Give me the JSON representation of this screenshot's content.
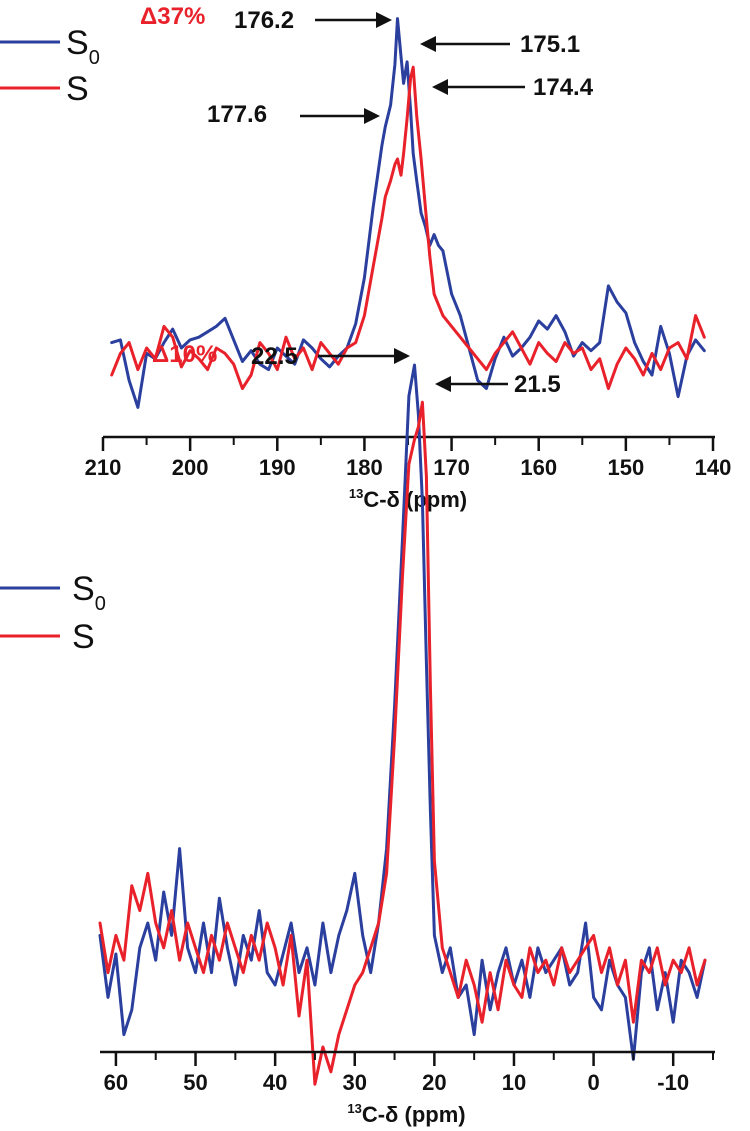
{
  "colors": {
    "s0": "#2a3f9e",
    "s": "#e8212a",
    "axis": "#111111",
    "delta": "#e8212a"
  },
  "chart_data": [
    {
      "type": "line",
      "xlabel_sup": "13",
      "xlabel_main": "C-δ (ppm)",
      "xlim": [
        210,
        140
      ],
      "xticks": [
        210,
        200,
        190,
        180,
        170,
        160,
        150,
        140
      ],
      "xtick_labels": [
        "210",
        "200",
        "190",
        "180",
        "170",
        "160",
        "150",
        "140"
      ],
      "legend": [
        {
          "label": "S",
          "sub": "0",
          "color_key": "s0"
        },
        {
          "label": "S",
          "sub": "",
          "color_key": "s"
        }
      ],
      "delta_label": "Δ37%",
      "annotations": [
        {
          "text": "176.2",
          "x": 176.2
        },
        {
          "text": "175.1",
          "x": 175.1
        },
        {
          "text": "177.6",
          "x": 177.6
        },
        {
          "text": "174.4",
          "x": 174.4
        }
      ],
      "series": [
        {
          "name": "S0",
          "color_key": "s0",
          "x": [
            209,
            208,
            207,
            206,
            205,
            204,
            203,
            202,
            201,
            200,
            199,
            198,
            197,
            196,
            195,
            194,
            193,
            192,
            191,
            190,
            189,
            188,
            187,
            186,
            185,
            184,
            183,
            182,
            181,
            180,
            179,
            178,
            177.6,
            177,
            176.5,
            176.2,
            175.8,
            175.5,
            175.1,
            174.7,
            174.4,
            174,
            173.5,
            173,
            172.5,
            172,
            171.5,
            171,
            170,
            169,
            168,
            167,
            166,
            165,
            164,
            163,
            162,
            161,
            160,
            159,
            158,
            157,
            156,
            155,
            154,
            153,
            152,
            151,
            150,
            149,
            148,
            147,
            146,
            145,
            144,
            143,
            142,
            141
          ],
          "y": [
            0.12,
            0.13,
            -0.02,
            -0.12,
            0.08,
            0.06,
            0.12,
            0.17,
            0.1,
            0.13,
            0.14,
            0.16,
            0.18,
            0.21,
            0.13,
            0.05,
            0.09,
            0.04,
            0.02,
            0.1,
            0.07,
            0.04,
            0.13,
            0.1,
            0.06,
            0.03,
            0.07,
            0.1,
            0.19,
            0.36,
            0.62,
            0.85,
            0.92,
            1.0,
            1.15,
            1.32,
            1.18,
            1.08,
            1.16,
            0.98,
            0.82,
            0.72,
            0.6,
            0.55,
            0.48,
            0.52,
            0.48,
            0.46,
            0.3,
            0.22,
            0.1,
            -0.02,
            -0.05,
            0.06,
            0.14,
            0.07,
            0.1,
            0.14,
            0.2,
            0.17,
            0.22,
            0.16,
            0.07,
            0.12,
            0.09,
            0.12,
            0.33,
            0.27,
            0.23,
            0.12,
            0.05,
            0.0,
            0.18,
            0.08,
            -0.08,
            0.07,
            0.13,
            0.09
          ]
        },
        {
          "name": "S",
          "color_key": "s",
          "x": [
            209,
            208,
            207,
            206,
            205,
            204,
            203,
            202,
            201,
            200,
            199,
            198,
            197,
            196,
            195,
            194,
            193,
            192,
            191,
            190,
            189,
            188,
            187,
            186,
            185,
            184,
            183,
            182,
            181,
            180,
            179,
            178,
            177.6,
            177,
            176.5,
            176.2,
            175.8,
            175.5,
            175.1,
            174.7,
            174.4,
            174,
            173.5,
            173,
            172.5,
            172,
            171.5,
            171,
            170,
            169,
            168,
            167,
            166,
            165,
            164,
            163,
            162,
            161,
            160,
            159,
            158,
            157,
            156,
            155,
            154,
            153,
            152,
            151,
            150,
            149,
            148,
            147,
            146,
            145,
            144,
            143,
            142,
            141
          ],
          "y": [
            0.0,
            0.08,
            0.12,
            0.02,
            0.1,
            0.06,
            0.18,
            0.14,
            0.03,
            0.09,
            0.06,
            0.02,
            0.1,
            0.08,
            0.04,
            -0.05,
            0.0,
            0.12,
            0.08,
            0.02,
            0.14,
            0.06,
            0.1,
            0.02,
            0.12,
            0.08,
            0.04,
            0.1,
            0.12,
            0.22,
            0.4,
            0.58,
            0.66,
            0.72,
            0.78,
            0.8,
            0.74,
            0.82,
            0.95,
            1.1,
            1.14,
            0.96,
            0.8,
            0.62,
            0.44,
            0.3,
            0.26,
            0.22,
            0.18,
            0.14,
            0.1,
            0.06,
            0.02,
            0.08,
            0.12,
            0.16,
            0.1,
            0.04,
            0.12,
            0.08,
            0.05,
            0.12,
            0.08,
            0.1,
            0.02,
            0.06,
            -0.05,
            0.04,
            0.1,
            0.06,
            0.0,
            0.08,
            0.02,
            0.1,
            0.12,
            0.06,
            0.22,
            0.14
          ]
        }
      ]
    },
    {
      "type": "line",
      "xlabel_sup": "13",
      "xlabel_main": "C-δ (ppm)",
      "xlim": [
        62,
        -15
      ],
      "xticks": [
        60,
        50,
        40,
        30,
        20,
        10,
        0,
        -10
      ],
      "xtick_labels": [
        "60",
        "50",
        "40",
        "30",
        "20",
        "10",
        "0",
        "-10"
      ],
      "legend": [
        {
          "label": "S",
          "sub": "0",
          "color_key": "s0"
        },
        {
          "label": "S",
          "sub": "",
          "color_key": "s"
        }
      ],
      "delta_label": "Δ10%",
      "annotations": [
        {
          "text": "22.5",
          "x": 22.5
        },
        {
          "text": "21.5",
          "x": 21.5
        }
      ],
      "series": [
        {
          "name": "S0",
          "color_key": "s0",
          "x": [
            62,
            61,
            60,
            59,
            58,
            57,
            56,
            55,
            54,
            53,
            52,
            51,
            50,
            49,
            48,
            47,
            46,
            45,
            44,
            43,
            42,
            41,
            40,
            39,
            38,
            37,
            36,
            35,
            34,
            33,
            32,
            31,
            30,
            29,
            28,
            27,
            26,
            25,
            24,
            23.2,
            22.5,
            22,
            21.5,
            21,
            20.5,
            20,
            19,
            18,
            17,
            16,
            15,
            14,
            13,
            12,
            11,
            10,
            9,
            8,
            7,
            6,
            5,
            4,
            3,
            2,
            1,
            0,
            -1,
            -2,
            -3,
            -4,
            -5,
            -6,
            -7,
            -8,
            -9,
            -10,
            -11,
            -12,
            -13,
            -14
          ],
          "y": [
            0.08,
            -0.02,
            0.05,
            -0.08,
            -0.04,
            0.06,
            0.1,
            0.04,
            0.15,
            0.08,
            0.22,
            0.06,
            0.02,
            0.1,
            0.02,
            0.14,
            0.06,
            0.0,
            0.08,
            0.04,
            0.12,
            0.02,
            0.0,
            0.05,
            0.1,
            0.02,
            0.06,
            0.0,
            0.1,
            0.02,
            0.08,
            0.12,
            0.18,
            0.08,
            0.02,
            0.1,
            0.22,
            0.45,
            0.72,
            0.95,
            1.0,
            0.92,
            0.78,
            0.52,
            0.28,
            0.08,
            0.02,
            0.06,
            -0.02,
            0.0,
            -0.08,
            0.04,
            -0.04,
            0.02,
            0.06,
            0.0,
            0.04,
            -0.02,
            0.06,
            0.02,
            0.04,
            0.06,
            0.0,
            0.02,
            0.1,
            -0.02,
            -0.04,
            0.04,
            0.0,
            -0.02,
            -0.12,
            0.02,
            0.06,
            -0.04,
            0.02,
            -0.06,
            0.04,
            0.02,
            -0.02,
            0.04
          ]
        },
        {
          "name": "S",
          "color_key": "s",
          "x": [
            62,
            61,
            60,
            59,
            58,
            57,
            56,
            55,
            54,
            53,
            52,
            51,
            50,
            49,
            48,
            47,
            46,
            45,
            44,
            43,
            42,
            41,
            40,
            39,
            38,
            37,
            36,
            35,
            34,
            33,
            32,
            31,
            30,
            29,
            28,
            27,
            26,
            25,
            24,
            23.2,
            22.5,
            22,
            21.5,
            21,
            20.5,
            20,
            19,
            18,
            17,
            16,
            15,
            14,
            13,
            12,
            11,
            10,
            9,
            8,
            7,
            6,
            5,
            4,
            3,
            2,
            1,
            0,
            -1,
            -2,
            -3,
            -4,
            -5,
            -6,
            -7,
            -8,
            -9,
            -10,
            -11,
            -12,
            -13,
            -14
          ],
          "y": [
            0.1,
            0.02,
            0.08,
            0.04,
            0.16,
            0.12,
            0.18,
            0.1,
            0.06,
            0.12,
            0.04,
            0.1,
            0.06,
            0.02,
            0.08,
            0.04,
            0.1,
            0.06,
            0.02,
            0.08,
            0.04,
            0.1,
            0.06,
            0.0,
            0.08,
            -0.05,
            0.04,
            -0.16,
            -0.1,
            -0.14,
            -0.08,
            -0.04,
            0.0,
            0.02,
            0.06,
            0.1,
            0.18,
            0.4,
            0.66,
            0.84,
            0.88,
            0.9,
            0.94,
            0.82,
            0.48,
            0.2,
            0.06,
            0.02,
            -0.02,
            0.04,
            0.0,
            -0.06,
            0.02,
            -0.04,
            0.04,
            0.0,
            -0.02,
            0.06,
            0.02,
            0.04,
            0.0,
            0.06,
            0.02,
            0.04,
            0.06,
            0.08,
            0.02,
            0.06,
            0.0,
            0.04,
            -0.06,
            0.04,
            0.02,
            0.06,
            0.0,
            0.04,
            0.02,
            0.06,
            0.0,
            0.04
          ]
        }
      ]
    }
  ]
}
